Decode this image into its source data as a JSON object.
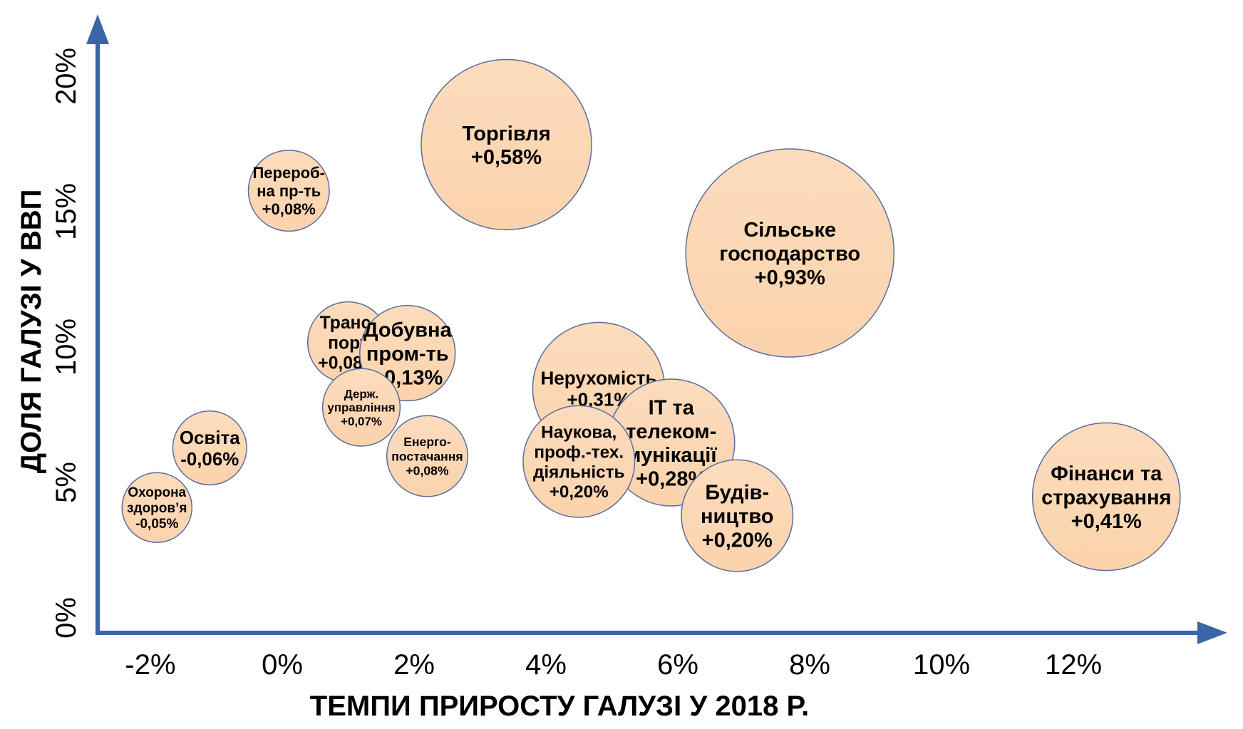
{
  "chart_data": {
    "type": "bubble",
    "title": "",
    "xlabel": "ТЕМПИ ПРИРОСТУ ГАЛУЗІ У 2018 Р.",
    "ylabel": "ДОЛЯ ГАЛУЗІ У ВВП",
    "x_ticks": [
      "-2%",
      "0%",
      "2%",
      "4%",
      "6%",
      "8%",
      "10%",
      "12%"
    ],
    "y_ticks": [
      "0%",
      "5%",
      "10%",
      "15%",
      "20%"
    ],
    "xlim": [
      -3,
      14
    ],
    "ylim": [
      0,
      22
    ],
    "grid": false,
    "legend": "none",
    "colors": {
      "bubble_fill": "#fcd9b8",
      "bubble_stroke": "#5a6d9e",
      "axis": "#3a65a8"
    },
    "points": [
      {
        "name": "torgivlia",
        "lines": [
          "Торгівля",
          "+0,58%"
        ],
        "x": 3.4,
        "y": 17.5,
        "size": 0.58
      },
      {
        "name": "silske-hospodarstvo",
        "lines": [
          "Сільське",
          "господарство",
          "+0,93%"
        ],
        "x": 7.7,
        "y": 13.5,
        "size": 0.93
      },
      {
        "name": "pererobna",
        "lines": [
          "Перероб-",
          "на пр-ть",
          "+0,08%"
        ],
        "x": 0.1,
        "y": 15.8,
        "size": 0.08
      },
      {
        "name": "transport",
        "lines": [
          "Транс-",
          "порт",
          "+0,08%"
        ],
        "x": 1.0,
        "y": 10.2,
        "size": 0.08
      },
      {
        "name": "dobuvna",
        "lines": [
          "Добувна",
          "пром-ть",
          "+0,13%"
        ],
        "x": 1.9,
        "y": 9.8,
        "size": 0.13
      },
      {
        "name": "derzh-upravlinnia",
        "lines": [
          "Держ.",
          "управління",
          "+0,07%"
        ],
        "x": 1.2,
        "y": 7.8,
        "size": 0.07
      },
      {
        "name": "osvita",
        "lines": [
          "Освіта",
          "-0,06%"
        ],
        "x": -1.1,
        "y": 6.3,
        "size": 0.06
      },
      {
        "name": "okhorona-zdorovia",
        "lines": [
          "Охорона",
          "здоров’я",
          "-0,05%"
        ],
        "x": -1.9,
        "y": 4.1,
        "size": 0.05
      },
      {
        "name": "enerhopostachannia",
        "lines": [
          "Енерго-",
          "постачання",
          "+0,08%"
        ],
        "x": 2.2,
        "y": 6.0,
        "size": 0.08
      },
      {
        "name": "nerukhomist",
        "lines": [
          "Нерухомість",
          "+0,31%"
        ],
        "x": 4.8,
        "y": 8.5,
        "size": 0.31
      },
      {
        "name": "it-telekomunikatsii",
        "lines": [
          "ІТ та",
          "телеком-",
          "мунікації",
          "+0,28%"
        ],
        "x": 5.9,
        "y": 6.5,
        "size": 0.28
      },
      {
        "name": "naukova-diialnist",
        "lines": [
          "Наукова,",
          "проф.-тех.",
          "діяльність",
          "+0,20%"
        ],
        "x": 4.5,
        "y": 5.8,
        "size": 0.2
      },
      {
        "name": "budivnytstvo",
        "lines": [
          "Будів-",
          "ництво",
          "+0,20%"
        ],
        "x": 6.9,
        "y": 3.8,
        "size": 0.2
      },
      {
        "name": "finansy-strakhuvannia",
        "lines": [
          "Фінанси та",
          "страхування",
          "+0,41%"
        ],
        "x": 12.5,
        "y": 4.5,
        "size": 0.41
      }
    ]
  }
}
